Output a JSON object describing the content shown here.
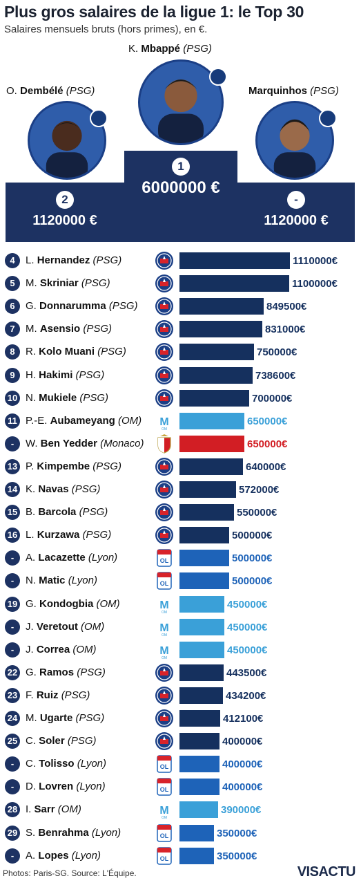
{
  "header": {
    "title": "Plus gros salaires de la ligue 1: le Top 30",
    "subtitle": "Salaires mensuels bruts (hors primes), en €."
  },
  "podium": [
    {
      "position": "1",
      "initial": "K.",
      "surname": "Mbappé",
      "club": "(PSG)",
      "salary_label": "6000000 €"
    },
    {
      "position": "2",
      "initial": "O.",
      "surname": "Dembélé",
      "club": "(PSG)",
      "salary_label": "1120000 €"
    },
    {
      "position": "-",
      "initial": "",
      "surname": "Marquinhos",
      "club": "(PSG)",
      "salary_label": "1120000 €"
    }
  ],
  "colors": {
    "navy": "#1d3262",
    "psg_bar": "#15305e",
    "om_bar": "#3aa0d8",
    "lyon_bar": "#1e63b8",
    "monaco_bar": "#d21e24"
  },
  "chart_data": {
    "type": "bar",
    "orientation": "horizontal",
    "unit": "€",
    "rows": [
      {
        "rank": "4",
        "initial": "L.",
        "surname": "Hernandez",
        "club": "(PSG)",
        "club_key": "psg",
        "value": 1110000,
        "label": "1110000€"
      },
      {
        "rank": "5",
        "initial": "M.",
        "surname": "Skriniar",
        "club": "(PSG)",
        "club_key": "psg",
        "value": 1100000,
        "label": "1100000€"
      },
      {
        "rank": "6",
        "initial": "G.",
        "surname": "Donnarumma",
        "club": "(PSG)",
        "club_key": "psg",
        "value": 849500,
        "label": "849500€"
      },
      {
        "rank": "7",
        "initial": "M.",
        "surname": "Asensio",
        "club": "(PSG)",
        "club_key": "psg",
        "value": 831000,
        "label": "831000€"
      },
      {
        "rank": "8",
        "initial": "R.",
        "surname": "Kolo Muani",
        "club": "(PSG)",
        "club_key": "psg",
        "value": 750000,
        "label": "750000€"
      },
      {
        "rank": "9",
        "initial": "H.",
        "surname": "Hakimi",
        "club": "(PSG)",
        "club_key": "psg",
        "value": 738600,
        "label": "738600€"
      },
      {
        "rank": "10",
        "initial": "N.",
        "surname": "Mukiele",
        "club": "(PSG)",
        "club_key": "psg",
        "value": 700000,
        "label": "700000€"
      },
      {
        "rank": "11",
        "initial": "P.-E.",
        "surname": "Aubameyang",
        "club": "(OM)",
        "club_key": "om",
        "value": 650000,
        "label": "650000€"
      },
      {
        "rank": "-",
        "initial": "W.",
        "surname": "Ben Yedder",
        "club": "(Monaco)",
        "club_key": "monaco",
        "value": 650000,
        "label": "650000€"
      },
      {
        "rank": "13",
        "initial": "P.",
        "surname": "Kimpembe",
        "club": "(PSG)",
        "club_key": "psg",
        "value": 640000,
        "label": "640000€"
      },
      {
        "rank": "14",
        "initial": "K.",
        "surname": "Navas",
        "club": "(PSG)",
        "club_key": "psg",
        "value": 572000,
        "label": "572000€"
      },
      {
        "rank": "15",
        "initial": "B.",
        "surname": "Barcola",
        "club": "(PSG)",
        "club_key": "psg",
        "value": 550000,
        "label": "550000€"
      },
      {
        "rank": "16",
        "initial": "L.",
        "surname": "Kurzawa",
        "club": "(PSG)",
        "club_key": "psg",
        "value": 500000,
        "label": "500000€"
      },
      {
        "rank": "-",
        "initial": "A.",
        "surname": "Lacazette",
        "club": "(Lyon)",
        "club_key": "lyon",
        "value": 500000,
        "label": "500000€"
      },
      {
        "rank": "-",
        "initial": "N.",
        "surname": "Matic",
        "club": "(Lyon)",
        "club_key": "lyon",
        "value": 500000,
        "label": "500000€"
      },
      {
        "rank": "19",
        "initial": "G.",
        "surname": "Kondogbia",
        "club": "(OM)",
        "club_key": "om",
        "value": 450000,
        "label": "450000€"
      },
      {
        "rank": "-",
        "initial": "J.",
        "surname": "Veretout",
        "club": "(OM)",
        "club_key": "om",
        "value": 450000,
        "label": "450000€"
      },
      {
        "rank": "-",
        "initial": "J.",
        "surname": "Correa",
        "club": "(OM)",
        "club_key": "om",
        "value": 450000,
        "label": "450000€"
      },
      {
        "rank": "22",
        "initial": "G.",
        "surname": "Ramos",
        "club": "(PSG)",
        "club_key": "psg",
        "value": 443500,
        "label": "443500€"
      },
      {
        "rank": "23",
        "initial": "F.",
        "surname": "Ruiz",
        "club": "(PSG)",
        "club_key": "psg",
        "value": 434200,
        "label": "434200€"
      },
      {
        "rank": "24",
        "initial": "M.",
        "surname": "Ugarte",
        "club": "(PSG)",
        "club_key": "psg",
        "value": 412100,
        "label": "412100€"
      },
      {
        "rank": "25",
        "initial": "C.",
        "surname": "Soler",
        "club": "(PSG)",
        "club_key": "psg",
        "value": 400000,
        "label": "400000€"
      },
      {
        "rank": "-",
        "initial": "C.",
        "surname": "Tolisso",
        "club": "(Lyon)",
        "club_key": "lyon",
        "value": 400000,
        "label": "400000€"
      },
      {
        "rank": "-",
        "initial": "D.",
        "surname": "Lovren",
        "club": "(Lyon)",
        "club_key": "lyon",
        "value": 400000,
        "label": "400000€"
      },
      {
        "rank": "28",
        "initial": "I.",
        "surname": "Sarr",
        "club": "(OM)",
        "club_key": "om",
        "value": 390000,
        "label": "390000€"
      },
      {
        "rank": "29",
        "initial": "S.",
        "surname": "Benrahma",
        "club": "(Lyon)",
        "club_key": "lyon",
        "value": 350000,
        "label": "350000€"
      },
      {
        "rank": "-",
        "initial": "A.",
        "surname": "Lopes",
        "club": "(Lyon)",
        "club_key": "lyon",
        "value": 350000,
        "label": "350000€"
      }
    ]
  },
  "footer": {
    "credits": "Photos: Paris-SG. Source: L'Équipe.",
    "brand": "VISACTU"
  }
}
